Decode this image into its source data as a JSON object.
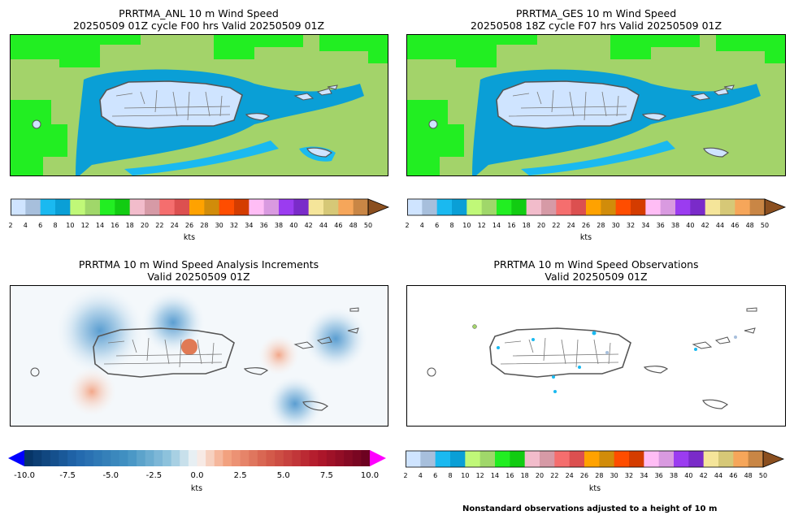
{
  "panels": {
    "anl": {
      "title_line1": "PRRTMA_ANL 10 m Wind Speed",
      "title_line2": "20250509 01Z cycle F00 hrs Valid 20250509 01Z"
    },
    "ges": {
      "title_line1": "PRRTMA_GES 10 m Wind Speed",
      "title_line2": "20250508 18Z cycle F07 hrs Valid 20250509 01Z"
    },
    "inc": {
      "title_line1": "PRRTMA 10 m Wind Speed Analysis Increments",
      "title_line2": "Valid 20250509 01Z"
    },
    "obs": {
      "title_line1": "PRRTMA 10 m Wind Speed Observations",
      "title_line2": "Valid 20250509 01Z"
    }
  },
  "speed_colorbar": {
    "ticks": [
      "2",
      "4",
      "6",
      "8",
      "10",
      "12",
      "14",
      "16",
      "18",
      "20",
      "22",
      "24",
      "26",
      "28",
      "30",
      "32",
      "34",
      "36",
      "38",
      "40",
      "42",
      "44",
      "46",
      "48",
      "50"
    ],
    "colors": [
      "#cfe4ff",
      "#a7bfdc",
      "#1ab9f0",
      "#0a9fd6",
      "#c0f878",
      "#a0d76a",
      "#22ee22",
      "#12cc12",
      "#f2bccb",
      "#d69aa6",
      "#f56e6e",
      "#dc5050",
      "#ffa200",
      "#d18c0a",
      "#ff4d00",
      "#d43c00",
      "#ffbdf5",
      "#d99ae0",
      "#9b3cf0",
      "#7a2bc9",
      "#f5e59a",
      "#d6c877",
      "#f6a65a",
      "#c98645"
    ],
    "extend_color": "#8b4f1f",
    "label": "kts"
  },
  "increment_colorbar": {
    "ticks": [
      "-10.0",
      "-7.5",
      "-5.0",
      "-2.5",
      "0.0",
      "2.5",
      "5.0",
      "7.5",
      "10.0"
    ],
    "under_color": "#0000ff",
    "over_color": "#ff00ff",
    "label": "kts"
  },
  "footnote": "Nonstandard observations adjusted to a height of 10 m"
}
